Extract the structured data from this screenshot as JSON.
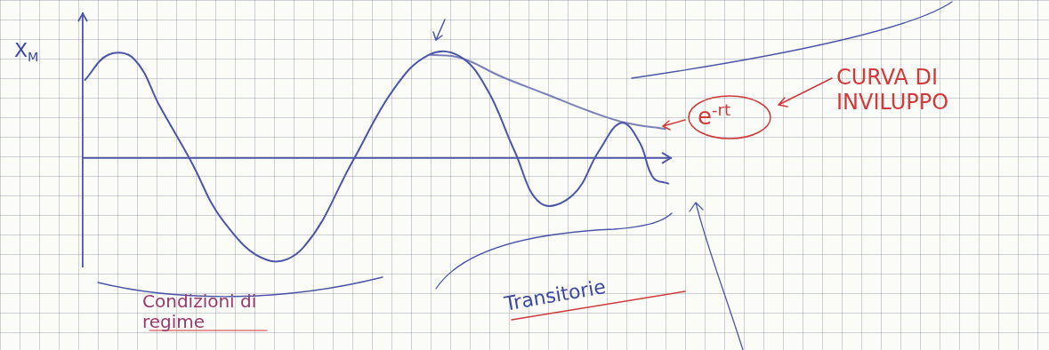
{
  "chart_data": {
    "type": "line",
    "xlim": [
      0,
      100
    ],
    "ylim": [
      -1.05,
      1.4
    ],
    "xticks": [],
    "yticks": [],
    "tick_labels": false,
    "grid": false,
    "series": [
      {
        "color": "#4b56a8",
        "line_style": "solid",
        "x": [
          0.3,
          4.4,
          8.7,
          13.2,
          18.3,
          23.9,
          31.5,
          37.6,
          46.0,
          52.8,
          58.9,
          64.2,
          68.8,
          73.4,
          77.9,
          83.3,
          87.8,
          91.6,
          94.7,
          97.0,
          99.7
        ],
        "values": [
          0.75,
          1.0,
          0.96,
          0.49,
          -0.02,
          -0.61,
          -0.99,
          -0.86,
          -0.02,
          0.66,
          1.0,
          0.98,
          0.66,
          0.07,
          -0.44,
          -0.36,
          0.07,
          0.34,
          0.15,
          -0.19,
          -0.25
        ]
      },
      {
        "color": "#7a80b8",
        "line_style": "solid",
        "x": [
          58.9,
          64.2,
          71.1,
          78.7,
          86.3,
          92.4,
          99.2
        ],
        "values": [
          1.0,
          0.97,
          0.79,
          0.62,
          0.45,
          0.34,
          0.28
        ]
      }
    ],
    "annotations": [
      {
        "base": "X",
        "subscript": "M",
        "color": "#3b4aa0"
      },
      {
        "base": "e",
        "exponent": "-rt",
        "color": "#d03a3a"
      },
      {
        "text": "CURVA DI INVILUPPO",
        "color": "#d03a3a"
      },
      {
        "text": "Condizioni di regime",
        "color": "#9a3a6a"
      },
      {
        "text": "Transitorie",
        "color": "#3b4aa0"
      }
    ]
  }
}
